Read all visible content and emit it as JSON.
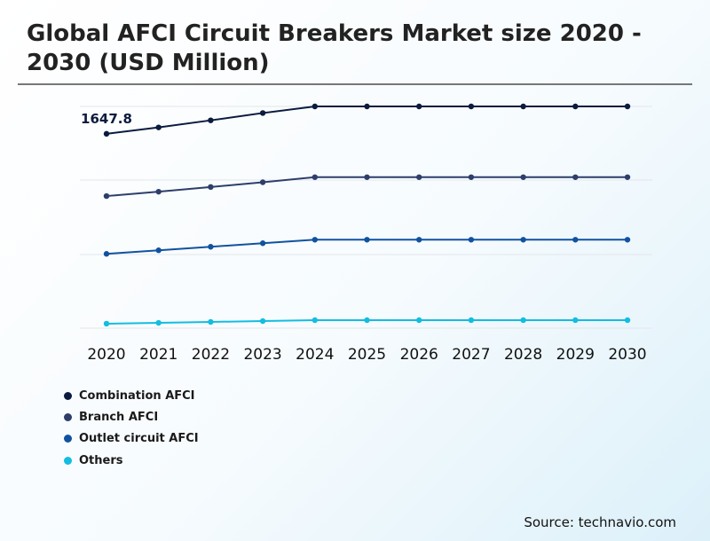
{
  "title": "Global AFCI Circuit Breakers Market size 2020 -\n2030 (USD Million)",
  "source": "Source: technavio.com",
  "chart_data": {
    "type": "line",
    "title": "Global AFCI Circuit Breakers Market size 2020 - 2030 (USD Million)",
    "categories": [
      "2020",
      "2021",
      "2022",
      "2023",
      "2024",
      "2025",
      "2026",
      "2027",
      "2028",
      "2029",
      "2030"
    ],
    "annotation": "1647.8",
    "series": [
      {
        "name": "Combination AFCI",
        "color": "#0b1b3f",
        "values": [
          1647.8,
          1702,
          1762,
          1824,
          1880,
          1880,
          1880,
          1880,
          1880,
          1880,
          1880
        ]
      },
      {
        "name": "Branch AFCI",
        "color": "#2d3e6b",
        "values": [
          1120,
          1157,
          1197,
          1237,
          1280,
          1280,
          1280,
          1280,
          1280,
          1280,
          1280
        ]
      },
      {
        "name": "Outlet circuit AFCI",
        "color": "#1152a0",
        "values": [
          630,
          660,
          690,
          720,
          750,
          750,
          750,
          750,
          750,
          750,
          750
        ]
      },
      {
        "name": "Others",
        "color": "#12bde0",
        "values": [
          38,
          45,
          53,
          60,
          68,
          68,
          68,
          68,
          68,
          68,
          68
        ]
      }
    ],
    "grid": true,
    "legend_position": "bottom-left"
  }
}
